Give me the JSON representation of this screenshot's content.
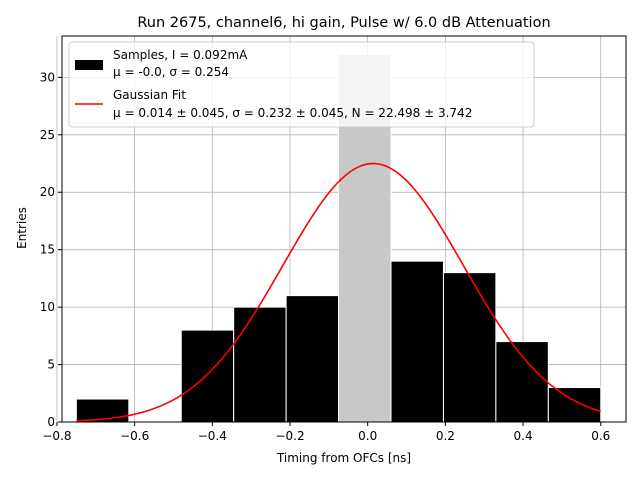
{
  "chart_data": {
    "type": "bar",
    "title": "Run 2675, channel6, hi gain, Pulse w/ 6.0 dB Attenuation",
    "xlabel": "Timing from OFCs [ns]",
    "ylabel": "Entries",
    "xlim": [
      -0.787,
      0.665
    ],
    "ylim": [
      0,
      33.6
    ],
    "xticks": [
      -0.8,
      -0.6,
      -0.4,
      -0.2,
      0.0,
      0.2,
      0.4,
      0.6
    ],
    "xtick_labels": [
      "−0.8",
      "−0.6",
      "−0.4",
      "−0.2",
      "0.0",
      "0.2",
      "0.4",
      "0.6"
    ],
    "yticks": [
      0,
      5,
      10,
      15,
      20,
      25,
      30
    ],
    "ytick_labels": [
      "0",
      "5",
      "10",
      "15",
      "20",
      "25",
      "30"
    ],
    "grid": true,
    "legend_position": "top-left",
    "histogram": {
      "bin_edges": [
        -0.75,
        -0.615,
        -0.48,
        -0.345,
        -0.21,
        -0.075,
        0.06,
        0.195,
        0.33,
        0.465,
        0.6
      ],
      "counts": [
        2,
        0,
        8,
        10,
        11,
        32,
        14,
        13,
        7,
        3
      ],
      "highlight_bin": 5
    },
    "fit": {
      "mu": 0.014,
      "sigma": 0.232,
      "peak": 22.5,
      "x_range": [
        -0.75,
        0.6
      ]
    },
    "legend": [
      {
        "line1": "Samples, I = 0.092mA",
        "line2": "μ = -0.0, σ = 0.254"
      },
      {
        "line1": "Gaussian Fit",
        "line2": "μ = 0.014 ± 0.045, σ = 0.232 ± 0.045, N = 22.498 ± 3.742"
      }
    ]
  },
  "colors": {
    "bars": "#000000",
    "highlight_bar": "#c8c8c8",
    "bar_edge": "#ffffff",
    "fit_line": "#ff0000",
    "grid": "#b0b0b0"
  }
}
